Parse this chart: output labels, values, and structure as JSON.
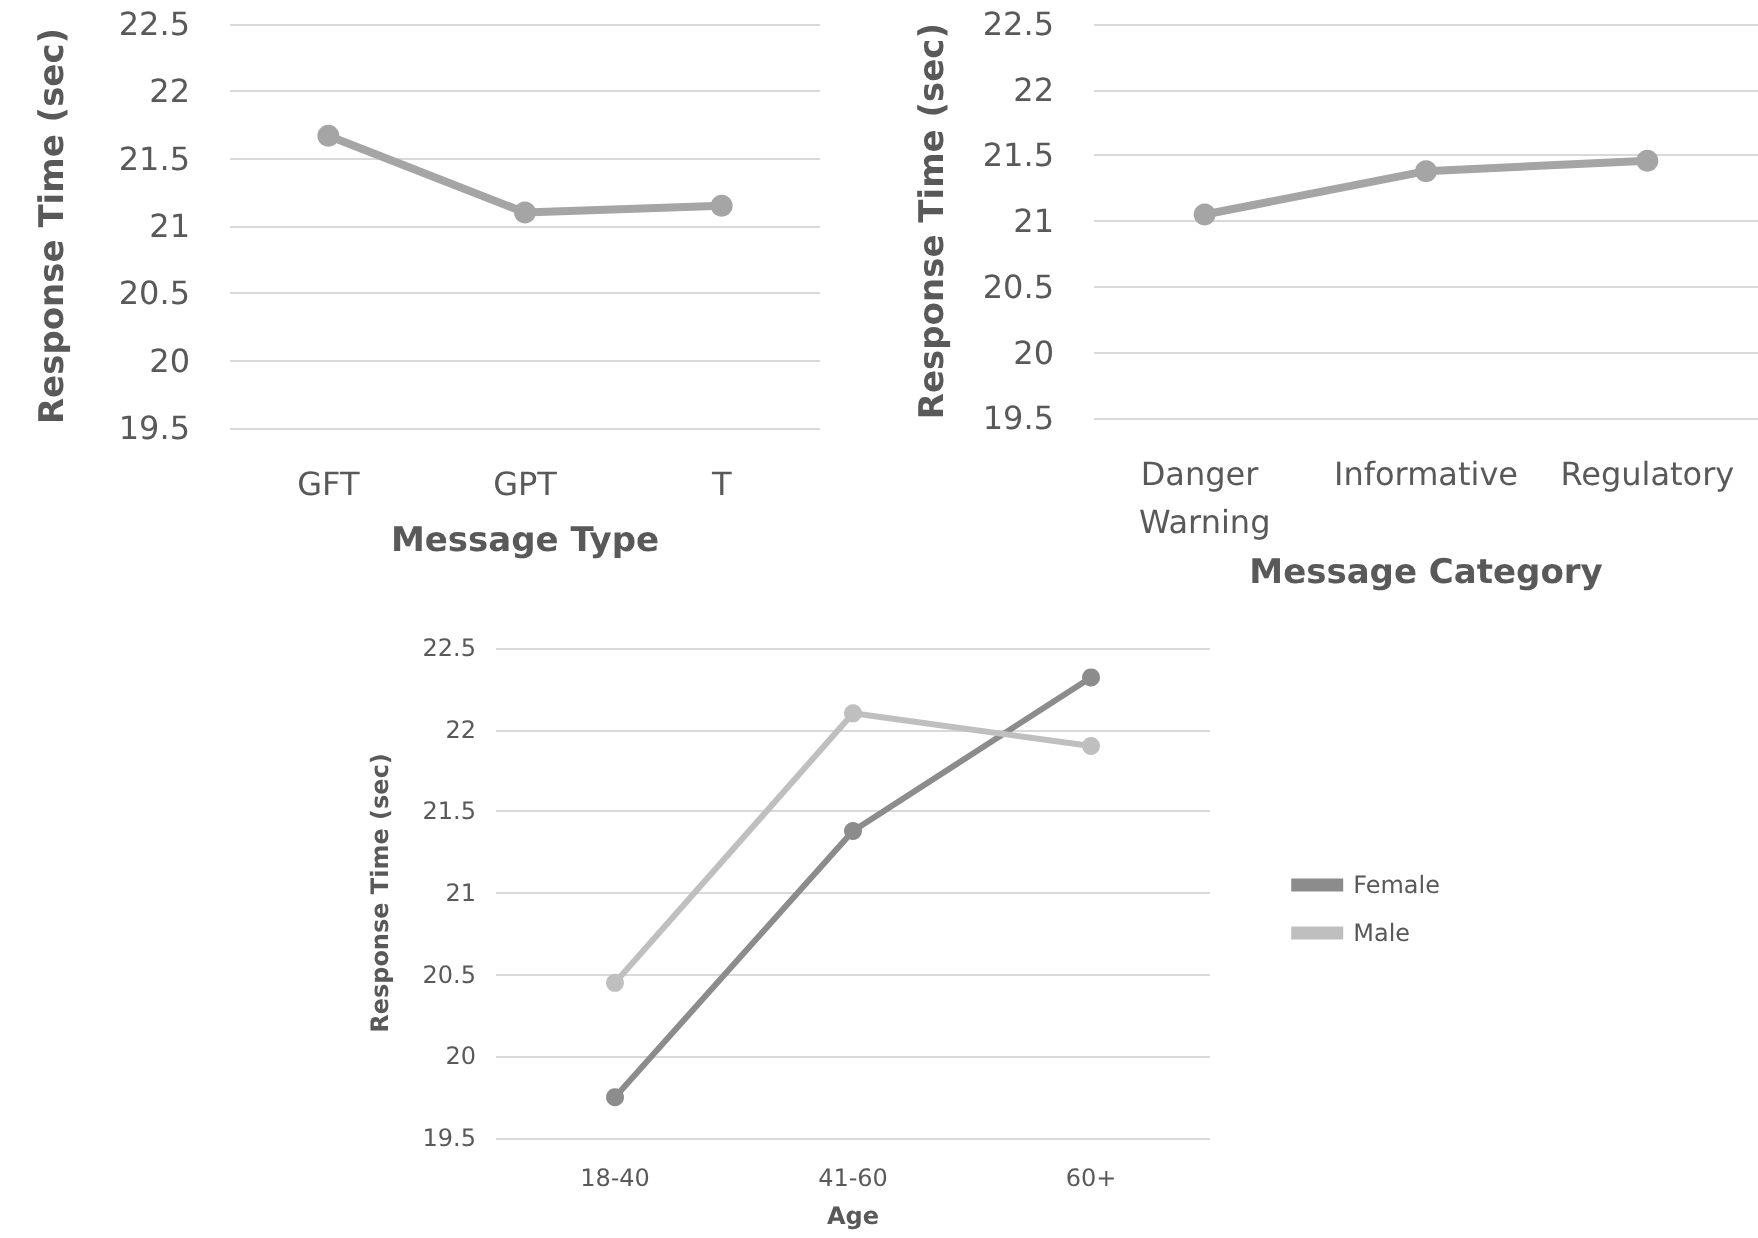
{
  "chart_data": [
    {
      "type": "line",
      "xlabel": "Message Type",
      "ylabel": "Response Time (sec)",
      "categories": [
        "GFT",
        "GPT",
        "T"
      ],
      "series": [
        {
          "color": "#a5a5a5",
          "values": [
            21.67,
            21.1,
            21.15
          ]
        }
      ],
      "ylim": [
        19.5,
        22.5
      ],
      "yticks": [
        19.5,
        20,
        20.5,
        21,
        21.5,
        22,
        22.5
      ],
      "grid": "y",
      "legend": false,
      "marker": "circle",
      "line_style": "solid"
    },
    {
      "type": "line",
      "xlabel": "Message Category",
      "ylabel": "Response Time (sec)",
      "categories": [
        "Danger Warning",
        "Informative",
        "Regulatory"
      ],
      "series": [
        {
          "color": "#a5a5a5",
          "values": [
            21.05,
            21.38,
            21.46
          ]
        }
      ],
      "ylim": [
        19.5,
        22.5
      ],
      "yticks": [
        19.5,
        20,
        20.5,
        21,
        21.5,
        22,
        22.5
      ],
      "grid": "y",
      "legend": false,
      "marker": "circle",
      "line_style": "solid"
    },
    {
      "type": "line",
      "xlabel": "Age",
      "ylabel": "Response Time (sec)",
      "categories": [
        "18-40",
        "41-60",
        "60+"
      ],
      "series": [
        {
          "name": "Female",
          "color": "#8c8c8c",
          "values": [
            19.75,
            21.38,
            22.32
          ]
        },
        {
          "name": "Male",
          "color": "#bfbfbf",
          "values": [
            20.45,
            22.1,
            21.9
          ]
        }
      ],
      "ylim": [
        19.5,
        22.5
      ],
      "yticks": [
        19.5,
        20,
        20.5,
        21,
        21.5,
        22,
        22.5
      ],
      "grid": "y",
      "legend": "right",
      "marker": "circle",
      "line_style": "solid"
    }
  ]
}
